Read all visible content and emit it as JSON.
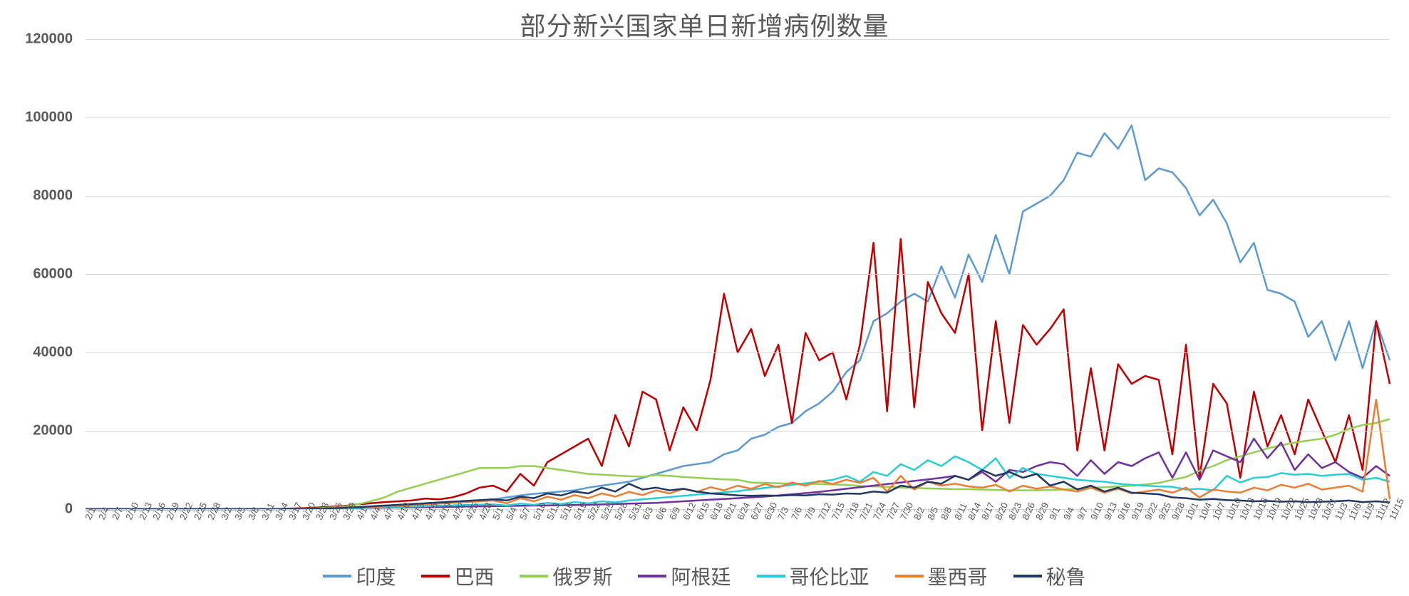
{
  "chart": {
    "type": "line",
    "title": "部分新兴国家单日新增病例数量",
    "title_fontsize": 36,
    "title_color": "#595959",
    "background_color": "#ffffff",
    "grid_color": "#d9d9d9",
    "axis_label_color": "#595959",
    "axis_label_fontsize": 20,
    "x_label_fontsize": 13,
    "x_label_rotation": -65,
    "ylim": [
      0,
      120000
    ],
    "ytick_step": 20000,
    "yticks": [
      0,
      20000,
      40000,
      60000,
      80000,
      100000,
      120000
    ],
    "x_categories": [
      "2/1",
      "2/4",
      "2/7",
      "2/10",
      "2/13",
      "2/16",
      "2/19",
      "2/22",
      "2/25",
      "2/28",
      "3/2",
      "3/5",
      "3/8",
      "3/11",
      "3/14",
      "3/17",
      "3/20",
      "3/23",
      "3/26",
      "3/29",
      "4/1",
      "4/4",
      "4/7",
      "4/10",
      "4/13",
      "4/16",
      "4/19",
      "4/22",
      "4/25",
      "4/28",
      "5/1",
      "5/4",
      "5/7",
      "5/10",
      "5/13",
      "5/16",
      "5/19",
      "5/22",
      "5/25",
      "5/28",
      "5/31",
      "6/3",
      "6/6",
      "6/9",
      "6/12",
      "6/15",
      "6/18",
      "6/21",
      "6/24",
      "6/27",
      "6/30",
      "7/3",
      "7/6",
      "7/9",
      "7/12",
      "7/15",
      "7/18",
      "7/21",
      "7/24",
      "7/27",
      "7/30",
      "8/2",
      "8/5",
      "8/8",
      "8/11",
      "8/14",
      "8/17",
      "8/20",
      "8/23",
      "8/26",
      "8/29",
      "9/1",
      "9/4",
      "9/7",
      "9/10",
      "9/13",
      "9/16",
      "9/19",
      "9/22",
      "9/25",
      "9/28",
      "10/1",
      "10/4",
      "10/7",
      "10/10",
      "10/13",
      "10/16",
      "10/19",
      "10/22",
      "10/25",
      "10/28",
      "10/31",
      "11/3",
      "11/6",
      "11/9",
      "11/12",
      "11/15"
    ],
    "line_width": 2.5,
    "legend_fontsize": 28,
    "legend_position": "bottom",
    "series": [
      {
        "name": "印度",
        "color": "#5b9bd5",
        "data": [
          0,
          0,
          0,
          0,
          0,
          0,
          0,
          0,
          0,
          0,
          0,
          5,
          10,
          20,
          30,
          50,
          80,
          100,
          150,
          200,
          300,
          500,
          700,
          900,
          1100,
          1300,
          1500,
          1700,
          1900,
          2200,
          2500,
          3000,
          3500,
          3900,
          4200,
          4500,
          4800,
          5500,
          6000,
          6500,
          7000,
          8000,
          9000,
          10000,
          11000,
          11500,
          12000,
          14000,
          15000,
          18000,
          19000,
          21000,
          22000,
          25000,
          27000,
          30000,
          35000,
          38000,
          48000,
          50000,
          53000,
          55000,
          53000,
          62000,
          54000,
          65000,
          58000,
          70000,
          60000,
          76000,
          78000,
          80000,
          84000,
          91000,
          90000,
          96000,
          92000,
          98000,
          84000,
          87000,
          86000,
          82000,
          75000,
          79000,
          73000,
          63000,
          68000,
          56000,
          55000,
          53000,
          44000,
          48000,
          38000,
          48000,
          36000,
          48000,
          38000
        ]
      },
      {
        "name": "巴西",
        "color": "#c00000",
        "data": [
          0,
          0,
          0,
          0,
          0,
          0,
          0,
          0,
          0,
          0,
          0,
          0,
          5,
          15,
          50,
          120,
          250,
          400,
          600,
          800,
          1200,
          1500,
          1800,
          2000,
          2200,
          2700,
          2500,
          3000,
          4000,
          5500,
          6000,
          4500,
          9000,
          6000,
          12000,
          14000,
          16000,
          18000,
          11000,
          24000,
          16000,
          30000,
          28000,
          15000,
          26000,
          20000,
          33000,
          55000,
          40000,
          46000,
          34000,
          42000,
          22000,
          45000,
          38000,
          40000,
          28000,
          42000,
          68000,
          25000,
          69000,
          26000,
          58000,
          50000,
          45000,
          60000,
          20000,
          48000,
          22000,
          47000,
          42000,
          46000,
          51000,
          15000,
          36000,
          15000,
          37000,
          32000,
          34000,
          33000,
          14000,
          42000,
          8000,
          32000,
          27000,
          8000,
          30000,
          16000,
          24000,
          14000,
          28000,
          20000,
          12000,
          24000,
          10000,
          48000,
          32000
        ]
      },
      {
        "name": "俄罗斯",
        "color": "#92d050",
        "data": [
          0,
          0,
          0,
          0,
          0,
          0,
          0,
          0,
          0,
          0,
          0,
          2,
          5,
          10,
          30,
          60,
          120,
          200,
          400,
          600,
          1200,
          2000,
          3000,
          4500,
          5500,
          6500,
          7500,
          8500,
          9500,
          10500,
          10500,
          10500,
          11000,
          11000,
          10500,
          10000,
          9500,
          9000,
          8800,
          8600,
          8400,
          8300,
          8700,
          8500,
          8200,
          8000,
          7800,
          7600,
          7500,
          6800,
          6700,
          6600,
          6500,
          6500,
          6400,
          6300,
          6200,
          5900,
          5800,
          5700,
          5500,
          5400,
          5300,
          5200,
          5100,
          5100,
          5000,
          4900,
          4800,
          4800,
          4800,
          4900,
          5000,
          5200,
          5400,
          5600,
          5800,
          6000,
          6300,
          6700,
          7500,
          8200,
          9800,
          11000,
          12500,
          13500,
          14500,
          15500,
          16300,
          17000,
          17500,
          18000,
          19000,
          20500,
          21500,
          22000,
          23000
        ]
      },
      {
        "name": "阿根廷",
        "color": "#7030a0",
        "data": [
          0,
          0,
          0,
          0,
          0,
          0,
          0,
          0,
          0,
          0,
          0,
          0,
          0,
          5,
          15,
          30,
          60,
          100,
          150,
          200,
          250,
          300,
          350,
          400,
          450,
          500,
          550,
          600,
          650,
          700,
          750,
          800,
          850,
          900,
          950,
          1000,
          1050,
          1100,
          1200,
          1300,
          1400,
          1500,
          1600,
          1800,
          2000,
          2200,
          2400,
          2600,
          2800,
          3000,
          3200,
          3500,
          3800,
          4100,
          4400,
          4800,
          5200,
          5600,
          6000,
          6400,
          6800,
          7200,
          7600,
          8000,
          8500,
          7500,
          9500,
          7000,
          10000,
          9500,
          11000,
          12000,
          11500,
          8500,
          12500,
          9000,
          12000,
          11000,
          13000,
          14500,
          8000,
          14500,
          7500,
          15000,
          13500,
          12000,
          18000,
          13000,
          17000,
          10000,
          14000,
          10500,
          12000,
          9500,
          8000,
          11000,
          8500
        ]
      },
      {
        "name": "哥伦比亚",
        "color": "#27ced7",
        "data": [
          0,
          0,
          0,
          0,
          0,
          0,
          0,
          0,
          0,
          0,
          0,
          0,
          0,
          2,
          8,
          20,
          40,
          70,
          120,
          180,
          250,
          350,
          450,
          550,
          650,
          750,
          850,
          950,
          1050,
          1150,
          1200,
          900,
          1400,
          1100,
          1600,
          1300,
          1800,
          1500,
          2000,
          1700,
          2200,
          2500,
          2800,
          3100,
          3400,
          3700,
          4000,
          4300,
          4600,
          5000,
          5400,
          5800,
          6200,
          6600,
          7000,
          7500,
          8500,
          7000,
          9500,
          8500,
          11500,
          10000,
          12500,
          11000,
          13500,
          12000,
          10000,
          13000,
          8000,
          10500,
          9000,
          8500,
          8000,
          7500,
          7200,
          7000,
          6500,
          6200,
          6000,
          5800,
          5700,
          5000,
          5200,
          4800,
          8500,
          6800,
          8000,
          8200,
          9200,
          8800,
          9000,
          8500,
          8800,
          9000,
          7500,
          8000,
          7000
        ]
      },
      {
        "name": "墨西哥",
        "color": "#ed7d31",
        "data": [
          0,
          0,
          0,
          0,
          0,
          0,
          0,
          0,
          0,
          0,
          0,
          0,
          0,
          3,
          10,
          25,
          50,
          100,
          180,
          280,
          400,
          550,
          700,
          850,
          1000,
          1200,
          1400,
          1600,
          1800,
          2000,
          2200,
          1500,
          2800,
          2000,
          3200,
          2400,
          3600,
          2800,
          4000,
          3200,
          4400,
          3600,
          4800,
          4000,
          5200,
          4400,
          5600,
          4800,
          6000,
          5200,
          6400,
          5600,
          6800,
          6000,
          7200,
          6400,
          7500,
          6700,
          8000,
          4500,
          8500,
          5000,
          7000,
          6000,
          6500,
          5800,
          5500,
          6200,
          4500,
          6000,
          5200,
          5800,
          5000,
          4500,
          5500,
          4200,
          5200,
          4000,
          4500,
          5000,
          4200,
          5500,
          3000,
          5000,
          4500,
          4200,
          5500,
          4800,
          6200,
          5500,
          6500,
          5000,
          5500,
          6000,
          4500,
          28000,
          2500
        ]
      },
      {
        "name": "秘鲁",
        "color": "#1f3864",
        "data": [
          0,
          0,
          0,
          0,
          0,
          0,
          0,
          0,
          0,
          0,
          0,
          0,
          0,
          2,
          8,
          20,
          50,
          100,
          200,
          350,
          500,
          700,
          900,
          1100,
          1300,
          1500,
          1700,
          1900,
          2100,
          2300,
          2500,
          2200,
          3200,
          2800,
          4000,
          3500,
          4500,
          4000,
          5500,
          4500,
          6500,
          5000,
          5500,
          4800,
          5200,
          4500,
          4000,
          3800,
          3500,
          3400,
          3500,
          3400,
          3600,
          3500,
          3800,
          3700,
          4000,
          3900,
          4500,
          4200,
          6000,
          5500,
          7000,
          6500,
          8500,
          7500,
          10000,
          8500,
          9500,
          8000,
          9000,
          6000,
          7000,
          5000,
          6000,
          4500,
          5500,
          4200,
          4000,
          3800,
          3000,
          2800,
          2400,
          2600,
          2300,
          2200,
          2000,
          2100,
          1900,
          2000,
          1800,
          1900,
          2000,
          2200,
          1800,
          2000,
          1700
        ]
      }
    ]
  }
}
